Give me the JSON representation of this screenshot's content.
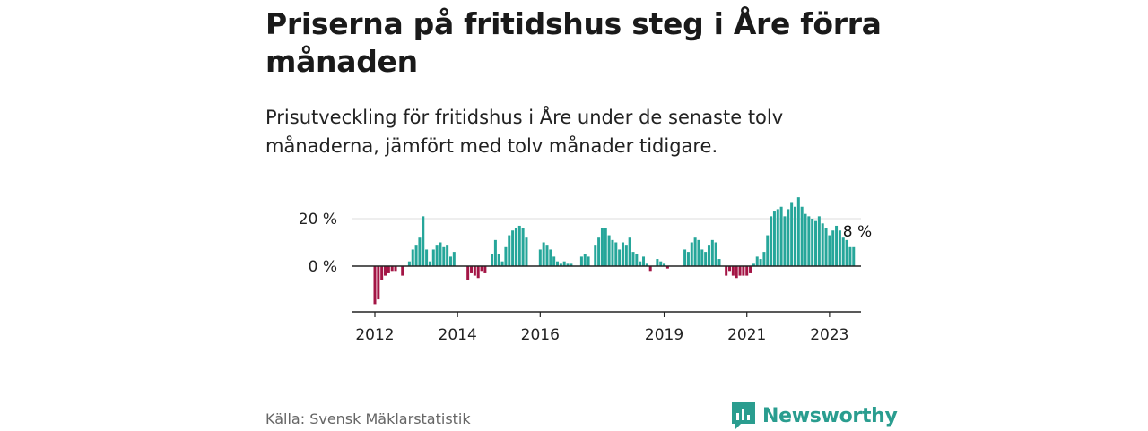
{
  "title": "Priserna på fritidshus steg i Åre förra månaden",
  "subtitle": "Prisutveckling för fritidshus i Åre under de senaste tolv månaderna, jämfört med tolv månader tidigare.",
  "source": "Källa: Svensk Mäklarstatistik",
  "brand": {
    "name": "Newsworthy",
    "icon": "newsworthy-logo-icon"
  },
  "colors": {
    "positive": "#26a69a",
    "negative": "#a31545",
    "axis": "#222222",
    "grid": "#dddddd"
  },
  "chart_data": {
    "type": "bar",
    "title": "",
    "xlabel": "",
    "ylabel": "",
    "y_unit": "%",
    "ylim": [
      -20,
      30
    ],
    "yticks": [
      {
        "value": 0,
        "label": "0 %"
      },
      {
        "value": 20,
        "label": "20 %"
      }
    ],
    "grid": "horizontal",
    "x_start": "2012-01",
    "xticks": [
      {
        "label": "2012",
        "index": 0
      },
      {
        "label": "2014",
        "index": 24
      },
      {
        "label": "2016",
        "index": 48
      },
      {
        "label": "2019",
        "index": 84
      },
      {
        "label": "2021",
        "index": 108
      },
      {
        "label": "2023",
        "index": 132
      }
    ],
    "last_value_label": "8 %",
    "values": [
      -16,
      -14,
      -6,
      -4,
      -3,
      -2,
      -2,
      0,
      -4,
      0,
      2,
      7,
      9,
      12,
      21,
      7,
      2,
      7,
      9,
      10,
      8,
      9,
      4,
      6,
      0,
      0,
      0,
      -6,
      -3,
      -4,
      -5,
      -2,
      -3,
      0,
      5,
      11,
      5,
      2,
      8,
      13,
      15,
      16,
      17,
      16,
      12,
      0,
      0,
      0,
      7,
      10,
      9,
      7,
      4,
      2,
      1,
      2,
      1,
      1,
      0,
      0,
      4,
      5,
      4,
      0,
      9,
      12,
      16,
      16,
      13,
      11,
      10,
      7,
      10,
      9,
      12,
      6,
      5,
      2,
      4,
      1,
      -2,
      0,
      3,
      2,
      1,
      -1,
      0,
      0,
      0,
      0,
      7,
      6,
      10,
      12,
      11,
      7,
      6,
      9,
      11,
      10,
      3,
      0,
      -4,
      -2,
      -4,
      -5,
      -4,
      -4,
      -4,
      -3,
      1,
      4,
      3,
      6,
      13,
      21,
      23,
      24,
      25,
      21,
      24,
      27,
      25,
      29,
      25,
      22,
      21,
      20,
      19,
      21,
      18,
      16,
      13,
      15,
      17,
      15,
      12,
      11,
      8,
      8
    ]
  }
}
